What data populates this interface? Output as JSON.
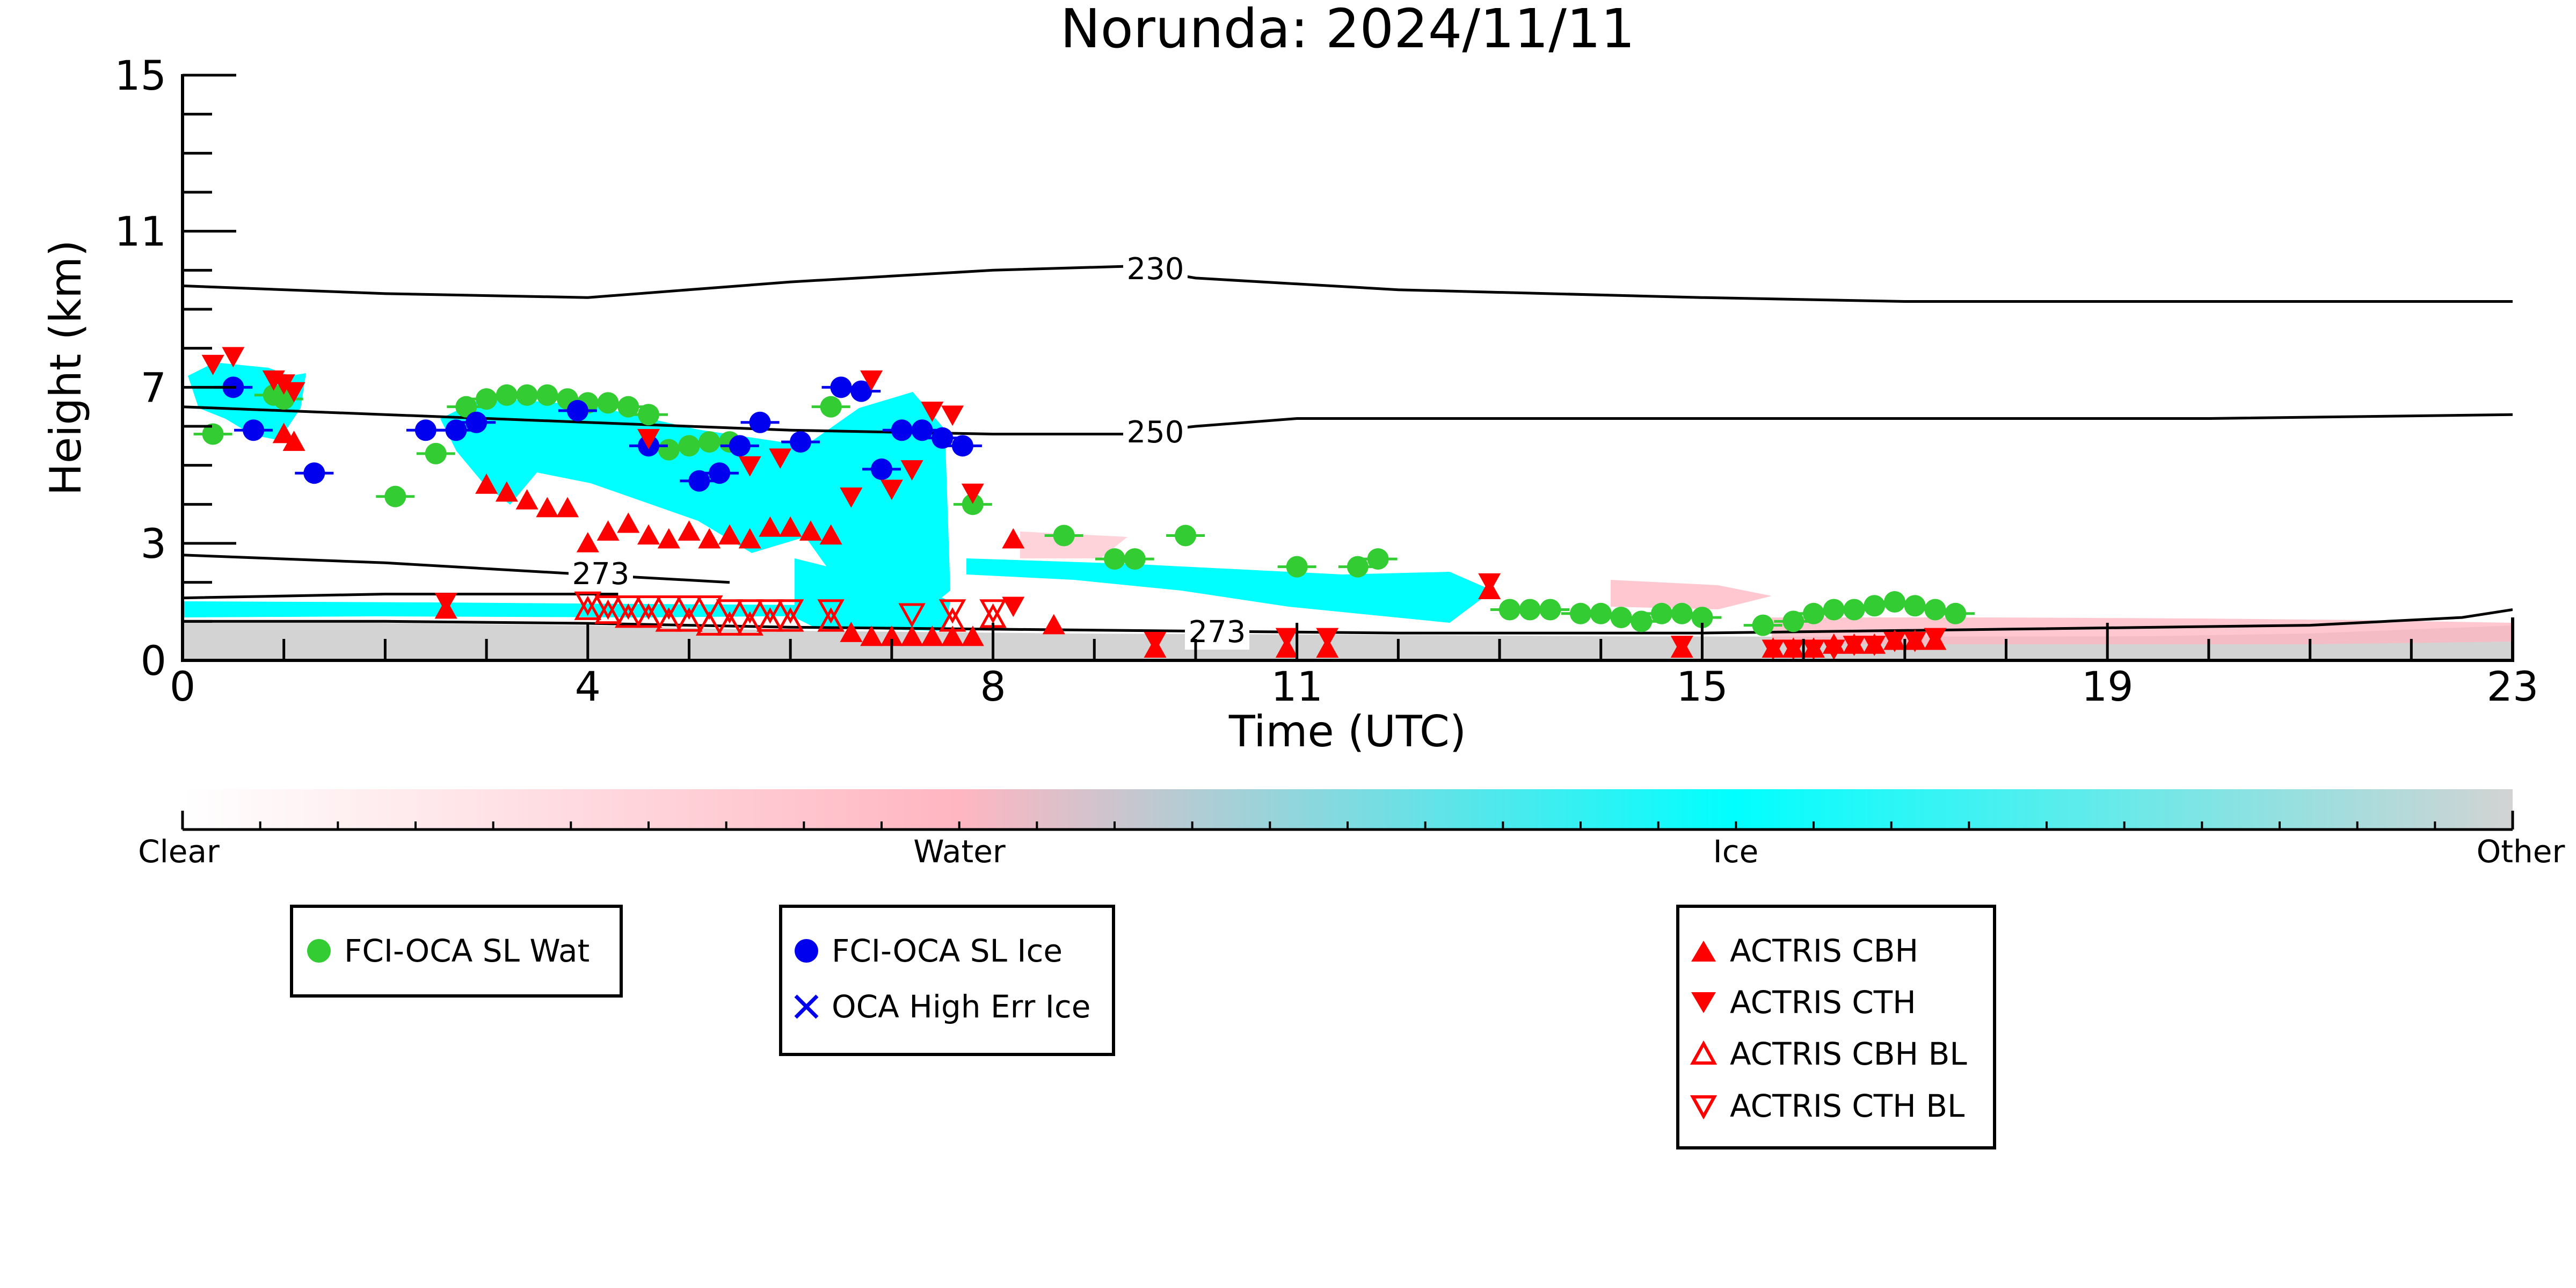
{
  "chart_data": {
    "type": "scatter",
    "title": "Norunda: 2024/11/11",
    "xlabel": "Time (UTC)",
    "ylabel": "Height (km)",
    "xlim": [
      0,
      23
    ],
    "ylim": [
      0,
      15
    ],
    "x_ticks": [
      0,
      4,
      8,
      11,
      15,
      19,
      23
    ],
    "y_ticks": [
      0,
      3,
      7,
      11,
      15
    ],
    "grid": false,
    "colorbar": {
      "labels": [
        "Clear",
        "Water",
        "Ice",
        "Other"
      ],
      "colors": [
        "#ffffff",
        "#ffb6c1",
        "#00ffff",
        "#d3d3d3"
      ]
    },
    "contour_labels": [
      "230",
      "250",
      "273",
      "273"
    ],
    "contours": [
      {
        "label": "230",
        "points": [
          [
            0,
            9.6
          ],
          [
            2,
            9.4
          ],
          [
            4,
            9.3
          ],
          [
            6,
            9.7
          ],
          [
            8,
            10.0
          ],
          [
            9.3,
            10.1
          ],
          [
            10,
            9.8
          ],
          [
            12,
            9.5
          ],
          [
            15,
            9.3
          ],
          [
            17,
            9.2
          ],
          [
            20,
            9.2
          ],
          [
            23,
            9.2
          ]
        ]
      },
      {
        "label": "250",
        "points": [
          [
            0,
            6.5
          ],
          [
            2,
            6.3
          ],
          [
            4,
            6.1
          ],
          [
            6,
            5.9
          ],
          [
            8,
            5.8
          ],
          [
            9.3,
            5.8
          ],
          [
            10,
            6.0
          ],
          [
            11,
            6.2
          ],
          [
            13,
            6.2
          ],
          [
            16,
            6.2
          ],
          [
            20,
            6.2
          ],
          [
            23,
            6.3
          ]
        ]
      },
      {
        "label": "273",
        "points": [
          [
            0,
            2.7
          ],
          [
            2,
            2.5
          ],
          [
            4,
            2.2
          ],
          [
            5.4,
            2.0
          ]
        ]
      },
      {
        "label": "273",
        "points": [
          [
            0,
            1.6
          ],
          [
            2,
            1.7
          ],
          [
            3.8,
            1.7
          ],
          [
            4.3,
            1.7
          ]
        ]
      },
      {
        "label": "273",
        "points": [
          [
            0,
            1.0
          ],
          [
            2,
            1.0
          ],
          [
            4,
            0.95
          ],
          [
            6,
            0.85
          ],
          [
            8,
            0.8
          ],
          [
            10,
            0.75
          ],
          [
            12,
            0.7
          ],
          [
            15,
            0.7
          ],
          [
            18,
            0.8
          ],
          [
            21,
            0.9
          ],
          [
            22.5,
            1.1
          ],
          [
            23,
            1.3
          ]
        ]
      }
    ],
    "legend_groups": [
      {
        "entries": [
          {
            "name": "FCI-OCA SL Wat",
            "marker": "circle",
            "color": "#33cc33"
          }
        ]
      },
      {
        "entries": [
          {
            "name": "FCI-OCA SL Ice",
            "marker": "circle",
            "color": "#0000ee"
          },
          {
            "name": "OCA High Err Ice",
            "marker": "x",
            "color": "#0000ee"
          }
        ]
      },
      {
        "entries": [
          {
            "name": "ACTRIS CBH",
            "marker": "triangle-up",
            "color": "#ff0000"
          },
          {
            "name": "ACTRIS CTH",
            "marker": "triangle-down",
            "color": "#ff0000"
          },
          {
            "name": "ACTRIS CBH BL",
            "marker": "triangle-up-open",
            "color": "#ff0000"
          },
          {
            "name": "ACTRIS CTH BL",
            "marker": "triangle-down-open",
            "color": "#ff0000"
          }
        ]
      }
    ],
    "series": [
      {
        "name": "FCI-OCA SL Wat",
        "color": "#33cc33",
        "marker": "circle",
        "points": [
          [
            0.3,
            5.8
          ],
          [
            0.9,
            6.8
          ],
          [
            1.0,
            6.7
          ],
          [
            2.1,
            4.2
          ],
          [
            2.5,
            5.3
          ],
          [
            2.8,
            6.5
          ],
          [
            3.0,
            6.7
          ],
          [
            3.2,
            6.8
          ],
          [
            3.4,
            6.8
          ],
          [
            3.6,
            6.8
          ],
          [
            3.8,
            6.7
          ],
          [
            4.0,
            6.6
          ],
          [
            4.2,
            6.6
          ],
          [
            4.4,
            6.5
          ],
          [
            4.6,
            6.3
          ],
          [
            4.8,
            5.4
          ],
          [
            5.0,
            5.5
          ],
          [
            5.2,
            5.6
          ],
          [
            5.4,
            5.6
          ],
          [
            6.4,
            6.5
          ],
          [
            7.8,
            4.0
          ],
          [
            8.7,
            3.2
          ],
          [
            9.2,
            2.6
          ],
          [
            9.4,
            2.6
          ],
          [
            9.9,
            3.2
          ],
          [
            11.0,
            2.4
          ],
          [
            11.6,
            2.4
          ],
          [
            11.8,
            2.6
          ],
          [
            13.1,
            1.3
          ],
          [
            13.3,
            1.3
          ],
          [
            13.5,
            1.3
          ],
          [
            13.8,
            1.2
          ],
          [
            14.0,
            1.2
          ],
          [
            14.2,
            1.1
          ],
          [
            14.4,
            1.0
          ],
          [
            14.6,
            1.2
          ],
          [
            14.8,
            1.2
          ],
          [
            15.0,
            1.1
          ],
          [
            15.6,
            0.9
          ],
          [
            15.9,
            1.0
          ],
          [
            16.1,
            1.2
          ],
          [
            16.3,
            1.3
          ],
          [
            16.5,
            1.3
          ],
          [
            16.7,
            1.4
          ],
          [
            16.9,
            1.5
          ],
          [
            17.1,
            1.4
          ],
          [
            17.3,
            1.3
          ],
          [
            17.5,
            1.2
          ]
        ]
      },
      {
        "name": "FCI-OCA SL Ice",
        "color": "#0000ee",
        "marker": "circle",
        "points": [
          [
            0.5,
            7.0
          ],
          [
            0.7,
            5.9
          ],
          [
            1.3,
            4.8
          ],
          [
            2.4,
            5.9
          ],
          [
            2.7,
            5.9
          ],
          [
            2.9,
            6.1
          ],
          [
            3.9,
            6.4
          ],
          [
            4.6,
            5.5
          ],
          [
            5.1,
            4.6
          ],
          [
            5.3,
            4.8
          ],
          [
            5.5,
            5.5
          ],
          [
            5.7,
            6.1
          ],
          [
            6.1,
            5.6
          ],
          [
            6.5,
            7.0
          ],
          [
            6.7,
            6.9
          ],
          [
            6.9,
            4.9
          ],
          [
            7.1,
            5.9
          ],
          [
            7.3,
            5.9
          ],
          [
            7.5,
            5.7
          ],
          [
            7.7,
            5.5
          ]
        ]
      },
      {
        "name": "ACTRIS CBH",
        "color": "#ff0000",
        "marker": "triangle-up",
        "points": [
          [
            1.0,
            5.8
          ],
          [
            1.1,
            5.6
          ],
          [
            2.6,
            1.3
          ],
          [
            3.0,
            4.5
          ],
          [
            3.2,
            4.3
          ],
          [
            3.4,
            4.1
          ],
          [
            3.6,
            3.9
          ],
          [
            3.8,
            3.9
          ],
          [
            4.0,
            3.0
          ],
          [
            4.2,
            3.3
          ],
          [
            4.4,
            3.5
          ],
          [
            4.6,
            3.2
          ],
          [
            4.8,
            3.1
          ],
          [
            5.0,
            3.3
          ],
          [
            5.2,
            3.1
          ],
          [
            5.4,
            3.2
          ],
          [
            5.6,
            3.1
          ],
          [
            5.8,
            3.4
          ],
          [
            6.0,
            3.4
          ],
          [
            6.2,
            3.3
          ],
          [
            6.4,
            3.2
          ],
          [
            6.6,
            0.7
          ],
          [
            6.8,
            0.6
          ],
          [
            7.0,
            0.6
          ],
          [
            7.2,
            0.6
          ],
          [
            7.4,
            0.6
          ],
          [
            7.6,
            0.6
          ],
          [
            7.8,
            0.6
          ],
          [
            8.2,
            3.1
          ],
          [
            8.6,
            0.9
          ],
          [
            9.6,
            0.3
          ],
          [
            10.9,
            0.3
          ],
          [
            11.3,
            0.3
          ],
          [
            12.9,
            1.8
          ],
          [
            14.8,
            0.3
          ],
          [
            15.7,
            0.3
          ],
          [
            15.9,
            0.3
          ],
          [
            16.1,
            0.3
          ],
          [
            16.3,
            0.4
          ],
          [
            16.5,
            0.4
          ],
          [
            16.7,
            0.4
          ],
          [
            16.9,
            0.5
          ],
          [
            17.1,
            0.5
          ],
          [
            17.3,
            0.5
          ]
        ]
      },
      {
        "name": "ACTRIS CTH",
        "color": "#ff0000",
        "marker": "triangle-down",
        "points": [
          [
            0.3,
            7.6
          ],
          [
            0.5,
            7.8
          ],
          [
            0.9,
            7.2
          ],
          [
            1.0,
            7.1
          ],
          [
            1.1,
            6.9
          ],
          [
            2.6,
            1.5
          ],
          [
            4.6,
            5.7
          ],
          [
            5.6,
            5.0
          ],
          [
            5.9,
            5.2
          ],
          [
            6.6,
            4.2
          ],
          [
            6.8,
            7.2
          ],
          [
            7.0,
            4.4
          ],
          [
            7.2,
            4.9
          ],
          [
            7.4,
            6.4
          ],
          [
            7.6,
            6.3
          ],
          [
            7.8,
            4.3
          ],
          [
            8.2,
            1.4
          ],
          [
            9.6,
            0.5
          ],
          [
            10.9,
            0.6
          ],
          [
            11.3,
            0.6
          ],
          [
            12.9,
            2.0
          ],
          [
            14.8,
            0.4
          ],
          [
            15.7,
            0.3
          ],
          [
            15.9,
            0.3
          ],
          [
            16.1,
            0.3
          ],
          [
            16.3,
            0.3
          ],
          [
            16.5,
            0.4
          ],
          [
            16.7,
            0.4
          ],
          [
            16.9,
            0.5
          ],
          [
            17.1,
            0.5
          ],
          [
            17.3,
            0.6
          ]
        ]
      },
      {
        "name": "ACTRIS CBH BL",
        "color": "#ff0000",
        "marker": "triangle-up-open",
        "points": [
          [
            4.0,
            1.3
          ],
          [
            4.2,
            1.2
          ],
          [
            4.4,
            1.1
          ],
          [
            4.6,
            1.1
          ],
          [
            4.8,
            1.0
          ],
          [
            5.0,
            1.0
          ],
          [
            5.2,
            0.9
          ],
          [
            5.4,
            0.9
          ],
          [
            5.6,
            0.9
          ],
          [
            5.8,
            1.0
          ],
          [
            6.0,
            1.0
          ],
          [
            6.4,
            1.0
          ],
          [
            7.6,
            1.0
          ],
          [
            8.0,
            1.1
          ]
        ]
      },
      {
        "name": "ACTRIS CTH BL",
        "color": "#ff0000",
        "marker": "triangle-down-open",
        "points": [
          [
            4.0,
            1.5
          ],
          [
            4.2,
            1.4
          ],
          [
            4.4,
            1.4
          ],
          [
            4.6,
            1.4
          ],
          [
            4.8,
            1.4
          ],
          [
            5.0,
            1.4
          ],
          [
            5.2,
            1.4
          ],
          [
            5.4,
            1.3
          ],
          [
            5.6,
            1.3
          ],
          [
            5.8,
            1.3
          ],
          [
            6.0,
            1.3
          ],
          [
            6.4,
            1.3
          ],
          [
            7.2,
            1.2
          ],
          [
            7.6,
            1.3
          ],
          [
            8.0,
            1.3
          ]
        ]
      }
    ]
  }
}
